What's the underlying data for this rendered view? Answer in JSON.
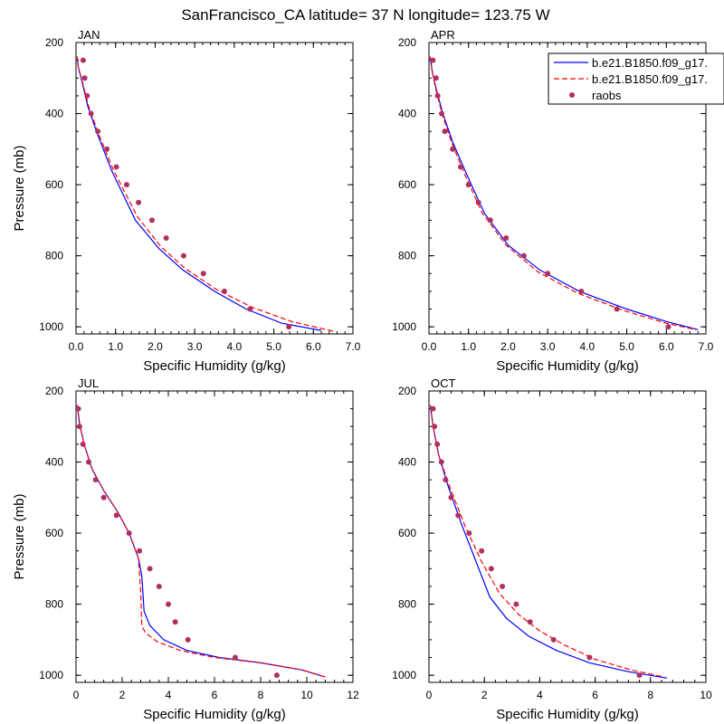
{
  "figure": {
    "title": "SanFrancisco_CA  latitude= 37 N longitude= 123.75 W"
  },
  "legend": {
    "placement": "top-right",
    "entries": [
      {
        "label": "b.e21.B1850.f09_g17.",
        "color": "#0000ff",
        "style": "solid"
      },
      {
        "label": "b.e21.B1850.f09_g17.",
        "color": "#ff0000",
        "style": "dashed"
      },
      {
        "label": "raobs",
        "color": "#b03060",
        "style": "marker"
      }
    ]
  },
  "chart_data": [
    {
      "type": "line",
      "title": "JAN",
      "xlabel": "Specific Humidity (g/kg)",
      "ylabel": "Pressure (mb)",
      "xlim": [
        0,
        7
      ],
      "ylim": [
        200,
        1020
      ],
      "y_reversed": true,
      "xticks": [
        0,
        1,
        2,
        3,
        4,
        5,
        6,
        7
      ],
      "xtick_labels": [
        "0.0",
        "1.0",
        "2.0",
        "3.0",
        "4.0",
        "5.0",
        "6.0",
        "7.0"
      ],
      "yticks": [
        200,
        400,
        600,
        800,
        1000
      ],
      "ytick_labels": [
        "200",
        "400",
        "600",
        "800",
        "1000"
      ],
      "series": [
        {
          "style": "solid",
          "color": "#0000ff",
          "x": [
            0.03,
            0.06,
            0.15,
            0.3,
            0.55,
            0.9,
            1.5,
            2.1,
            2.7,
            3.5,
            4.3,
            5.2,
            6.2
          ],
          "y": [
            240,
            270,
            310,
            380,
            460,
            560,
            700,
            780,
            840,
            900,
            950,
            990,
            1010
          ]
        },
        {
          "style": "dashed",
          "color": "#ff0000",
          "x": [
            0.03,
            0.06,
            0.16,
            0.32,
            0.58,
            0.95,
            1.55,
            2.15,
            2.75,
            3.55,
            4.45,
            5.45,
            6.5
          ],
          "y": [
            240,
            270,
            310,
            380,
            460,
            560,
            690,
            775,
            835,
            895,
            945,
            985,
            1012
          ]
        },
        {
          "style": "marker",
          "color": "#b03060",
          "x": [
            0.18,
            0.22,
            0.28,
            0.38,
            0.55,
            0.78,
            1.02,
            1.28,
            1.58,
            1.92,
            2.28,
            2.72,
            3.22,
            3.75,
            4.4,
            5.38
          ],
          "y": [
            250,
            300,
            350,
            400,
            450,
            500,
            550,
            600,
            650,
            700,
            750,
            800,
            850,
            900,
            950,
            1000
          ]
        }
      ]
    },
    {
      "type": "line",
      "title": "APR",
      "xlabel": "Specific Humidity (g/kg)",
      "ylabel": "",
      "xlim": [
        0,
        7
      ],
      "ylim": [
        200,
        1020
      ],
      "y_reversed": true,
      "xticks": [
        0,
        1,
        2,
        3,
        4,
        5,
        6,
        7
      ],
      "xtick_labels": [
        "0.0",
        "1.0",
        "2.0",
        "3.0",
        "4.0",
        "5.0",
        "6.0",
        "7.0"
      ],
      "yticks": [
        200,
        400,
        600,
        800,
        1000
      ],
      "ytick_labels": [
        "200",
        "400",
        "600",
        "800",
        "1000"
      ],
      "series": [
        {
          "style": "solid",
          "color": "#0000ff",
          "x": [
            0.03,
            0.08,
            0.18,
            0.35,
            0.6,
            0.95,
            1.4,
            2.0,
            2.8,
            3.8,
            5.0,
            6.0,
            6.8
          ],
          "y": [
            240,
            280,
            330,
            400,
            480,
            570,
            680,
            770,
            840,
            900,
            950,
            985,
            1008
          ]
        },
        {
          "style": "dashed",
          "color": "#ff0000",
          "x": [
            0.03,
            0.08,
            0.17,
            0.33,
            0.57,
            0.9,
            1.35,
            1.95,
            2.75,
            3.75,
            4.95,
            6.0,
            6.75
          ],
          "y": [
            240,
            280,
            330,
            400,
            480,
            570,
            680,
            770,
            845,
            905,
            955,
            990,
            1008
          ]
        },
        {
          "style": "marker",
          "color": "#b03060",
          "x": [
            0.1,
            0.18,
            0.22,
            0.32,
            0.4,
            0.6,
            0.8,
            1.0,
            1.25,
            1.55,
            1.95,
            2.4,
            3.0,
            3.85,
            4.75,
            6.05
          ],
          "y": [
            250,
            300,
            350,
            400,
            450,
            500,
            550,
            600,
            650,
            700,
            750,
            800,
            850,
            900,
            950,
            1000
          ]
        }
      ]
    },
    {
      "type": "line",
      "title": "JUL",
      "xlabel": "Specific Humidity (g/kg)",
      "ylabel": "Pressure (mb)",
      "xlim": [
        0,
        12
      ],
      "ylim": [
        200,
        1020
      ],
      "y_reversed": true,
      "xticks": [
        0,
        2,
        4,
        6,
        8,
        10,
        12
      ],
      "xtick_labels": [
        "0",
        "2",
        "4",
        "6",
        "8",
        "10",
        "12"
      ],
      "yticks": [
        200,
        400,
        600,
        800,
        1000
      ],
      "ytick_labels": [
        "200",
        "400",
        "600",
        "800",
        "1000"
      ],
      "series": [
        {
          "style": "solid",
          "color": "#0000ff",
          "x": [
            0.05,
            0.15,
            0.35,
            0.7,
            1.2,
            1.8,
            2.3,
            2.7,
            2.85,
            2.95,
            3.2,
            3.8,
            4.8,
            6.2,
            8.0,
            9.8,
            10.8
          ],
          "y": [
            240,
            290,
            350,
            420,
            480,
            540,
            600,
            670,
            720,
            820,
            860,
            900,
            930,
            950,
            965,
            985,
            1005
          ]
        },
        {
          "style": "dashed",
          "color": "#ff0000",
          "x": [
            0.05,
            0.15,
            0.35,
            0.7,
            1.2,
            1.8,
            2.3,
            2.7,
            2.8,
            2.85,
            3.0,
            3.5,
            4.5,
            6.0,
            8.0,
            9.8,
            10.8
          ],
          "y": [
            240,
            290,
            350,
            420,
            480,
            540,
            600,
            670,
            760,
            860,
            880,
            905,
            930,
            950,
            965,
            985,
            1005
          ]
        },
        {
          "style": "marker",
          "color": "#b03060",
          "x": [
            0.1,
            0.15,
            0.3,
            0.55,
            0.85,
            1.2,
            1.75,
            2.3,
            2.75,
            3.2,
            3.6,
            4.0,
            4.3,
            4.85,
            6.9,
            8.7
          ],
          "y": [
            250,
            300,
            350,
            400,
            450,
            500,
            550,
            600,
            650,
            700,
            750,
            800,
            850,
            900,
            950,
            1000
          ]
        }
      ]
    },
    {
      "type": "line",
      "title": "OCT",
      "xlabel": "Specific Humidity (g/kg)",
      "ylabel": "",
      "xlim": [
        0,
        10
      ],
      "ylim": [
        200,
        1020
      ],
      "y_reversed": true,
      "xticks": [
        0,
        2,
        4,
        6,
        8,
        10
      ],
      "xtick_labels": [
        "0",
        "2",
        "4",
        "6",
        "8",
        "10"
      ],
      "yticks": [
        200,
        400,
        600,
        800,
        1000
      ],
      "ytick_labels": [
        "200",
        "400",
        "600",
        "800",
        "1000"
      ],
      "series": [
        {
          "style": "solid",
          "color": "#0000ff",
          "x": [
            0.05,
            0.15,
            0.35,
            0.7,
            1.2,
            1.7,
            2.2,
            2.8,
            3.6,
            4.6,
            5.8,
            7.2,
            8.6
          ],
          "y": [
            240,
            300,
            380,
            470,
            580,
            680,
            780,
            840,
            890,
            930,
            965,
            990,
            1008
          ]
        },
        {
          "style": "dashed",
          "color": "#ff0000",
          "x": [
            0.05,
            0.15,
            0.35,
            0.75,
            1.3,
            1.9,
            2.55,
            3.25,
            4.0,
            4.9,
            6.0,
            7.3,
            8.5
          ],
          "y": [
            240,
            300,
            380,
            470,
            580,
            680,
            770,
            830,
            875,
            915,
            955,
            985,
            1005
          ]
        },
        {
          "style": "marker",
          "color": "#b03060",
          "x": [
            0.15,
            0.2,
            0.3,
            0.45,
            0.6,
            0.8,
            1.05,
            1.45,
            1.9,
            2.25,
            2.65,
            3.15,
            3.65,
            4.5,
            5.8,
            7.6
          ],
          "y": [
            250,
            300,
            350,
            400,
            450,
            500,
            550,
            600,
            650,
            700,
            750,
            800,
            850,
            900,
            950,
            1000
          ]
        }
      ]
    }
  ]
}
